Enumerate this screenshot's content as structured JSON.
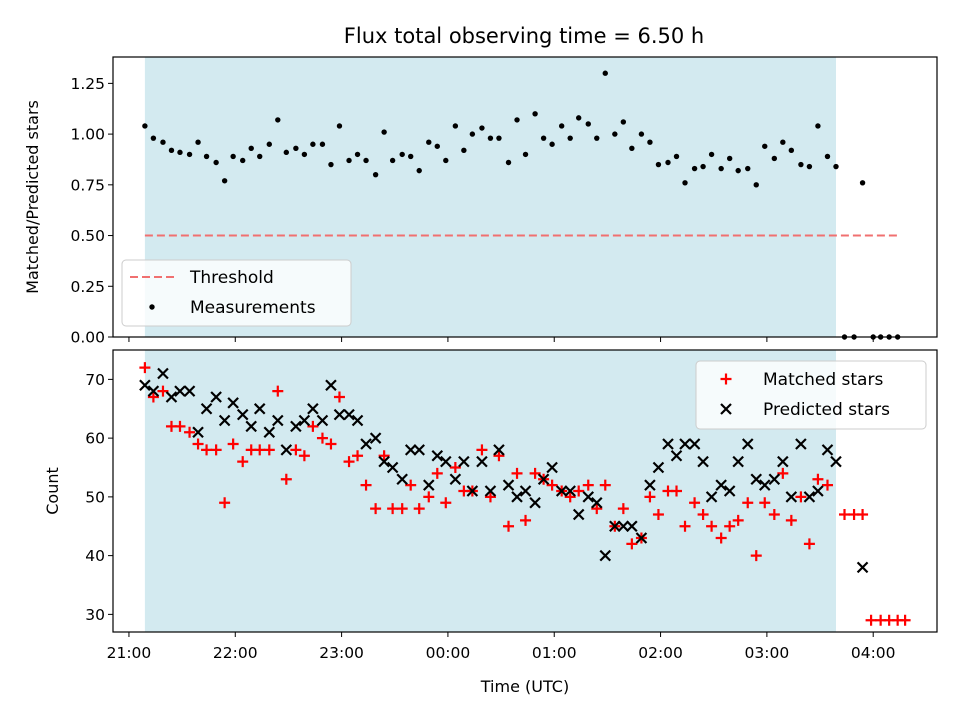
{
  "figure": {
    "title": "Flux total observing time = 6.50 h",
    "xlabel": "Time (UTC)"
  },
  "chart_data": [
    {
      "type": "scatter",
      "ylabel": "Matched/Predicted stars",
      "x_ticks": [
        "21:00",
        "22:00",
        "23:00",
        "00:00",
        "01:00",
        "02:00",
        "03:00",
        "04:00"
      ],
      "y_ticks": [
        "0.00",
        "0.25",
        "0.50",
        "0.75",
        "1.00",
        "1.25"
      ],
      "xlim_hours": [
        20.85,
        28.6
      ],
      "ylim": [
        0,
        1.38
      ],
      "observing_window_hours": [
        21.15,
        27.65
      ],
      "observing_window_color": "#d3eaf0",
      "threshold": {
        "name": "Threshold",
        "value": 0.5,
        "x_range_hours": [
          21.15,
          28.25
        ],
        "color": "#f07070"
      },
      "series": [
        {
          "name": "Measurements",
          "color": "#000000",
          "points": [
            [
              21.15,
              1.04
            ],
            [
              21.23,
              0.98
            ],
            [
              21.32,
              0.96
            ],
            [
              21.4,
              0.92
            ],
            [
              21.48,
              0.91
            ],
            [
              21.57,
              0.9
            ],
            [
              21.65,
              0.96
            ],
            [
              21.73,
              0.89
            ],
            [
              21.82,
              0.86
            ],
            [
              21.9,
              0.77
            ],
            [
              21.98,
              0.89
            ],
            [
              22.07,
              0.87
            ],
            [
              22.15,
              0.93
            ],
            [
              22.23,
              0.89
            ],
            [
              22.32,
              0.95
            ],
            [
              22.4,
              1.07
            ],
            [
              22.48,
              0.91
            ],
            [
              22.57,
              0.93
            ],
            [
              22.65,
              0.9
            ],
            [
              22.73,
              0.95
            ],
            [
              22.82,
              0.95
            ],
            [
              22.9,
              0.85
            ],
            [
              22.98,
              1.04
            ],
            [
              23.07,
              0.87
            ],
            [
              23.15,
              0.9
            ],
            [
              23.23,
              0.87
            ],
            [
              23.32,
              0.8
            ],
            [
              23.4,
              1.01
            ],
            [
              23.48,
              0.87
            ],
            [
              23.57,
              0.9
            ],
            [
              23.65,
              0.89
            ],
            [
              23.73,
              0.82
            ],
            [
              23.82,
              0.96
            ],
            [
              23.9,
              0.94
            ],
            [
              23.98,
              0.87
            ],
            [
              24.07,
              1.04
            ],
            [
              24.15,
              0.92
            ],
            [
              24.23,
              1.0
            ],
            [
              24.32,
              1.03
            ],
            [
              24.4,
              0.98
            ],
            [
              24.48,
              0.98
            ],
            [
              24.57,
              0.86
            ],
            [
              24.65,
              1.07
            ],
            [
              24.73,
              0.9
            ],
            [
              24.82,
              1.1
            ],
            [
              24.9,
              0.98
            ],
            [
              24.98,
              0.95
            ],
            [
              25.07,
              1.04
            ],
            [
              25.15,
              0.98
            ],
            [
              25.23,
              1.08
            ],
            [
              25.32,
              1.05
            ],
            [
              25.4,
              0.98
            ],
            [
              25.48,
              1.3
            ],
            [
              25.57,
              1.0
            ],
            [
              25.65,
              1.06
            ],
            [
              25.73,
              0.93
            ],
            [
              25.82,
              1.0
            ],
            [
              25.9,
              0.96
            ],
            [
              25.98,
              0.85
            ],
            [
              26.07,
              0.86
            ],
            [
              26.15,
              0.89
            ],
            [
              26.23,
              0.76
            ],
            [
              26.32,
              0.83
            ],
            [
              26.4,
              0.84
            ],
            [
              26.48,
              0.9
            ],
            [
              26.57,
              0.83
            ],
            [
              26.65,
              0.88
            ],
            [
              26.73,
              0.82
            ],
            [
              26.82,
              0.83
            ],
            [
              26.9,
              0.75
            ],
            [
              26.98,
              0.94
            ],
            [
              27.07,
              0.88
            ],
            [
              27.15,
              0.96
            ],
            [
              27.23,
              0.92
            ],
            [
              27.32,
              0.85
            ],
            [
              27.4,
              0.84
            ],
            [
              27.48,
              1.04
            ],
            [
              27.57,
              0.89
            ],
            [
              27.65,
              0.84
            ],
            [
              27.9,
              0.76
            ],
            [
              27.73,
              0.0
            ],
            [
              27.82,
              0.0
            ],
            [
              28.0,
              0.0
            ],
            [
              28.07,
              0.0
            ],
            [
              28.15,
              0.0
            ],
            [
              28.23,
              0.0
            ]
          ]
        }
      ],
      "legend": {
        "placement": "lower-left",
        "entries": [
          "Threshold",
          "Measurements"
        ]
      }
    },
    {
      "type": "scatter",
      "ylabel": "Count",
      "x_ticks": [
        "21:00",
        "22:00",
        "23:00",
        "00:00",
        "01:00",
        "02:00",
        "03:00",
        "04:00"
      ],
      "y_ticks": [
        "30",
        "40",
        "50",
        "60",
        "70"
      ],
      "xlim_hours": [
        20.85,
        28.6
      ],
      "ylim": [
        27,
        75
      ],
      "observing_window_hours": [
        21.15,
        27.65
      ],
      "observing_window_color": "#d3eaf0",
      "series": [
        {
          "name": "Matched stars",
          "marker": "plus",
          "color": "#ff0000",
          "points": [
            [
              21.15,
              72
            ],
            [
              21.23,
              67
            ],
            [
              21.32,
              68
            ],
            [
              21.4,
              62
            ],
            [
              21.48,
              62
            ],
            [
              21.57,
              61
            ],
            [
              21.65,
              59
            ],
            [
              21.73,
              58
            ],
            [
              21.82,
              58
            ],
            [
              21.9,
              49
            ],
            [
              21.98,
              59
            ],
            [
              22.07,
              56
            ],
            [
              22.15,
              58
            ],
            [
              22.23,
              58
            ],
            [
              22.32,
              58
            ],
            [
              22.4,
              68
            ],
            [
              22.48,
              53
            ],
            [
              22.57,
              58
            ],
            [
              22.65,
              57
            ],
            [
              22.73,
              62
            ],
            [
              22.82,
              60
            ],
            [
              22.9,
              59
            ],
            [
              22.98,
              67
            ],
            [
              23.07,
              56
            ],
            [
              23.15,
              57
            ],
            [
              23.23,
              52
            ],
            [
              23.32,
              48
            ],
            [
              23.4,
              57
            ],
            [
              23.48,
              48
            ],
            [
              23.57,
              48
            ],
            [
              23.65,
              52
            ],
            [
              23.73,
              48
            ],
            [
              23.82,
              50
            ],
            [
              23.9,
              54
            ],
            [
              23.98,
              49
            ],
            [
              24.07,
              55
            ],
            [
              24.15,
              51
            ],
            [
              24.23,
              51
            ],
            [
              24.32,
              58
            ],
            [
              24.4,
              50
            ],
            [
              24.48,
              57
            ],
            [
              24.57,
              45
            ],
            [
              24.65,
              54
            ],
            [
              24.73,
              46
            ],
            [
              24.82,
              54
            ],
            [
              24.9,
              53
            ],
            [
              24.98,
              52
            ],
            [
              25.07,
              51
            ],
            [
              25.15,
              50
            ],
            [
              25.23,
              51
            ],
            [
              25.32,
              52
            ],
            [
              25.4,
              48
            ],
            [
              25.48,
              52
            ],
            [
              25.57,
              45
            ],
            [
              25.65,
              48
            ],
            [
              25.73,
              42
            ],
            [
              25.82,
              43
            ],
            [
              25.9,
              50
            ],
            [
              25.98,
              47
            ],
            [
              26.07,
              51
            ],
            [
              26.15,
              51
            ],
            [
              26.23,
              45
            ],
            [
              26.32,
              49
            ],
            [
              26.4,
              47
            ],
            [
              26.48,
              45
            ],
            [
              26.57,
              43
            ],
            [
              26.65,
              45
            ],
            [
              26.73,
              46
            ],
            [
              26.82,
              49
            ],
            [
              26.9,
              40
            ],
            [
              26.98,
              49
            ],
            [
              27.07,
              47
            ],
            [
              27.15,
              54
            ],
            [
              27.23,
              46
            ],
            [
              27.32,
              50
            ],
            [
              27.4,
              42
            ],
            [
              27.48,
              53
            ],
            [
              27.57,
              52
            ],
            [
              27.73,
              47
            ],
            [
              27.82,
              47
            ],
            [
              27.9,
              47
            ],
            [
              27.98,
              29
            ],
            [
              28.07,
              29
            ],
            [
              28.15,
              29
            ],
            [
              28.23,
              29
            ],
            [
              28.3,
              29
            ]
          ]
        },
        {
          "name": "Predicted stars",
          "marker": "x",
          "color": "#000000",
          "points": [
            [
              21.15,
              69
            ],
            [
              21.23,
              68
            ],
            [
              21.32,
              71
            ],
            [
              21.4,
              67
            ],
            [
              21.48,
              68
            ],
            [
              21.57,
              68
            ],
            [
              21.65,
              61
            ],
            [
              21.73,
              65
            ],
            [
              21.82,
              67
            ],
            [
              21.9,
              63
            ],
            [
              21.98,
              66
            ],
            [
              22.07,
              64
            ],
            [
              22.15,
              62
            ],
            [
              22.23,
              65
            ],
            [
              22.32,
              61
            ],
            [
              22.4,
              63
            ],
            [
              22.48,
              58
            ],
            [
              22.57,
              62
            ],
            [
              22.65,
              63
            ],
            [
              22.73,
              65
            ],
            [
              22.82,
              63
            ],
            [
              22.9,
              69
            ],
            [
              22.98,
              64
            ],
            [
              23.07,
              64
            ],
            [
              23.15,
              63
            ],
            [
              23.23,
              59
            ],
            [
              23.32,
              60
            ],
            [
              23.4,
              56
            ],
            [
              23.48,
              55
            ],
            [
              23.57,
              53
            ],
            [
              23.65,
              58
            ],
            [
              23.73,
              58
            ],
            [
              23.82,
              52
            ],
            [
              23.9,
              57
            ],
            [
              23.98,
              56
            ],
            [
              24.07,
              53
            ],
            [
              24.15,
              56
            ],
            [
              24.23,
              51
            ],
            [
              24.32,
              56
            ],
            [
              24.4,
              51
            ],
            [
              24.48,
              58
            ],
            [
              24.57,
              52
            ],
            [
              24.65,
              50
            ],
            [
              24.73,
              51
            ],
            [
              24.82,
              49
            ],
            [
              24.9,
              53
            ],
            [
              24.98,
              55
            ],
            [
              25.07,
              51
            ],
            [
              25.15,
              51
            ],
            [
              25.23,
              47
            ],
            [
              25.32,
              50
            ],
            [
              25.4,
              49
            ],
            [
              25.48,
              40
            ],
            [
              25.57,
              45
            ],
            [
              25.65,
              45
            ],
            [
              25.73,
              45
            ],
            [
              25.82,
              43
            ],
            [
              25.9,
              52
            ],
            [
              25.98,
              55
            ],
            [
              26.07,
              59
            ],
            [
              26.15,
              57
            ],
            [
              26.23,
              59
            ],
            [
              26.32,
              59
            ],
            [
              26.4,
              56
            ],
            [
              26.48,
              50
            ],
            [
              26.57,
              52
            ],
            [
              26.65,
              51
            ],
            [
              26.73,
              56
            ],
            [
              26.82,
              59
            ],
            [
              26.9,
              53
            ],
            [
              26.98,
              52
            ],
            [
              27.07,
              53
            ],
            [
              27.15,
              56
            ],
            [
              27.23,
              50
            ],
            [
              27.32,
              59
            ],
            [
              27.4,
              50
            ],
            [
              27.48,
              51
            ],
            [
              27.57,
              58
            ],
            [
              27.65,
              56
            ],
            [
              27.9,
              38
            ]
          ]
        }
      ],
      "legend": {
        "placement": "upper-right",
        "entries": [
          "Matched stars",
          "Predicted stars"
        ]
      }
    }
  ]
}
